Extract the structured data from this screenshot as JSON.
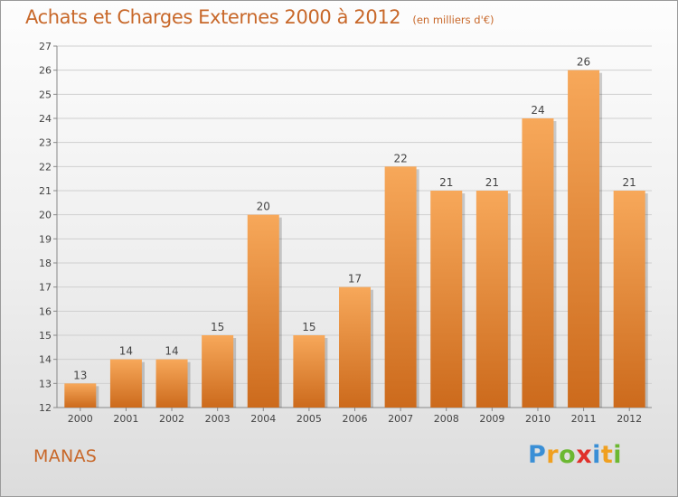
{
  "header": {
    "title": "Achats et Charges Externes 2000 à 2012",
    "unit_note": "(en milliers d'€)"
  },
  "footer": {
    "commune": "MANAS"
  },
  "brand": {
    "letters": [
      {
        "ch": "P",
        "color": "#3a8fd6"
      },
      {
        "ch": "r",
        "color": "#f0a020"
      },
      {
        "ch": "o",
        "color": "#6cb832"
      },
      {
        "ch": "x",
        "color": "#e0302a"
      },
      {
        "ch": "i",
        "color": "#3a8fd6"
      },
      {
        "ch": "t",
        "color": "#f0a020"
      },
      {
        "ch": "i",
        "color": "#6cb832"
      }
    ]
  },
  "chart_data": {
    "type": "bar",
    "title": "Achats et Charges Externes 2000 à 2012",
    "subtitle": "(en milliers d'€)",
    "categories": [
      "2000",
      "2001",
      "2002",
      "2003",
      "2004",
      "2005",
      "2006",
      "2007",
      "2008",
      "2009",
      "2010",
      "2011",
      "2012"
    ],
    "values": [
      13,
      14,
      14,
      15,
      20,
      15,
      17,
      22,
      21,
      21,
      24,
      26,
      21
    ],
    "ylim": [
      12,
      27
    ],
    "yticks": [
      12,
      13,
      14,
      15,
      16,
      17,
      18,
      19,
      20,
      21,
      22,
      23,
      24,
      25,
      26,
      27
    ],
    "grid": true,
    "bar_color_top": "#f7a85a",
    "bar_color_bottom": "#cc6a1c",
    "text_color": "#c8682a"
  }
}
